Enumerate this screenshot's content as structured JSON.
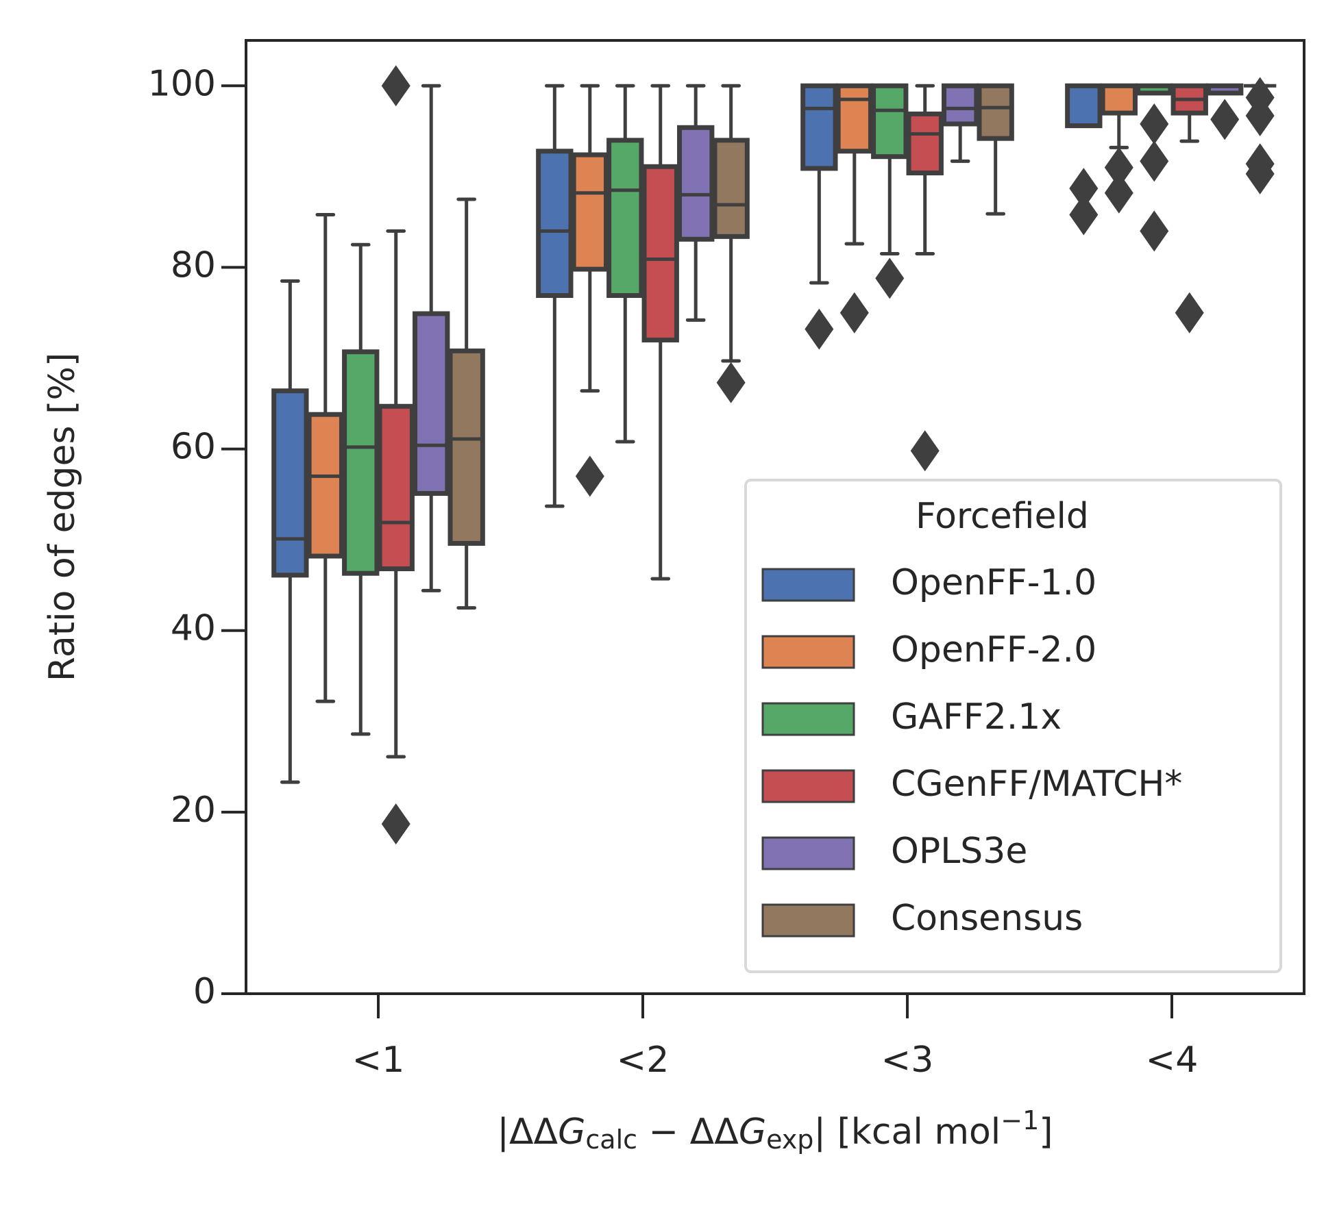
{
  "chart_data": {
    "type": "box",
    "ylabel": "Ratio of edges [%]",
    "xlabel": [
      "|ΔΔ",
      "G",
      "calc",
      " − ΔΔ",
      "G",
      "exp",
      "| [kcal mol",
      "−1",
      "]"
    ],
    "categories": [
      "<1",
      "<2",
      "<3",
      "<4"
    ],
    "ylim": [
      0,
      105
    ],
    "yticks": [
      0,
      20,
      40,
      60,
      80,
      100
    ],
    "legend_title": "Forcefield",
    "legend_position": "lower right",
    "edge_color": "#3f3f3f",
    "series": [
      {
        "name": "OpenFF-1.0",
        "color": "#4c72b0",
        "boxes": [
          {
            "whislo": 23.3,
            "q1": 46.1,
            "med": 50.1,
            "q3": 66.4,
            "whishi": 78.5,
            "fliers": []
          },
          {
            "whislo": 53.7,
            "q1": 76.9,
            "med": 84.0,
            "q3": 92.8,
            "whishi": 100,
            "fliers": []
          },
          {
            "whislo": 78.3,
            "q1": 90.9,
            "med": 97.5,
            "q3": 100,
            "whishi": 100,
            "fliers": [
              73.2
            ]
          },
          {
            "whislo": 95.6,
            "q1": 95.6,
            "med": 100,
            "q3": 100,
            "whishi": 100,
            "fliers": [
              88.7,
              85.8
            ]
          }
        ]
      },
      {
        "name": "OpenFF-2.0",
        "color": "#dd8452",
        "boxes": [
          {
            "whislo": 32.2,
            "q1": 48.2,
            "med": 57.0,
            "q3": 63.8,
            "whishi": 85.8,
            "fliers": []
          },
          {
            "whislo": 66.4,
            "q1": 79.8,
            "med": 88.2,
            "q3": 92.4,
            "whishi": 100,
            "fliers": [
              57.0
            ]
          },
          {
            "whislo": 82.6,
            "q1": 92.8,
            "med": 98.5,
            "q3": 100,
            "whishi": 100,
            "fliers": [
              75.0
            ]
          },
          {
            "whislo": 93.2,
            "q1": 97.0,
            "med": 100,
            "q3": 100,
            "whishi": 100,
            "fliers": [
              91.0,
              88.2
            ]
          }
        ]
      },
      {
        "name": "GAFF2.1x",
        "color": "#55a868",
        "boxes": [
          {
            "whislo": 28.6,
            "q1": 46.3,
            "med": 60.2,
            "q3": 70.7,
            "whishi": 82.5,
            "fliers": []
          },
          {
            "whislo": 60.8,
            "q1": 76.9,
            "med": 88.5,
            "q3": 94.0,
            "whishi": 100,
            "fliers": []
          },
          {
            "whislo": 81.5,
            "q1": 92.2,
            "med": 97.3,
            "q3": 100,
            "whishi": 100,
            "fliers": [
              78.8
            ]
          },
          {
            "whislo": 99.2,
            "q1": 99.2,
            "med": 100,
            "q3": 100,
            "whishi": 100,
            "fliers": [
              95.8,
              91.7,
              84.0
            ]
          }
        ]
      },
      {
        "name": "CGenFF/MATCH*",
        "color": "#c44e52",
        "boxes": [
          {
            "whislo": 26.1,
            "q1": 46.8,
            "med": 51.9,
            "q3": 64.7,
            "whishi": 84.0,
            "fliers": [
              100,
              18.7
            ]
          },
          {
            "whislo": 45.7,
            "q1": 72.0,
            "med": 80.9,
            "q3": 91.1,
            "whishi": 100,
            "fliers": []
          },
          {
            "whislo": 81.5,
            "q1": 90.4,
            "med": 94.7,
            "q3": 96.9,
            "whishi": 100,
            "fliers": [
              59.8
            ]
          },
          {
            "whislo": 93.9,
            "q1": 97.0,
            "med": 98.5,
            "q3": 100,
            "whishi": 100,
            "fliers": [
              75.0
            ]
          }
        ]
      },
      {
        "name": "OPLS3e",
        "color": "#8172b3",
        "boxes": [
          {
            "whislo": 44.4,
            "q1": 55.1,
            "med": 60.4,
            "q3": 74.9,
            "whishi": 100,
            "fliers": []
          },
          {
            "whislo": 74.2,
            "q1": 83.1,
            "med": 88.0,
            "q3": 95.4,
            "whishi": 100,
            "fliers": []
          },
          {
            "whislo": 91.7,
            "q1": 95.8,
            "med": 97.5,
            "q3": 100,
            "whishi": 100,
            "fliers": []
          },
          {
            "whislo": 99.2,
            "q1": 99.2,
            "med": 100,
            "q3": 100,
            "whishi": 100,
            "fliers": [
              96.3
            ]
          }
        ]
      },
      {
        "name": "Consensus",
        "color": "#937860",
        "boxes": [
          {
            "whislo": 42.5,
            "q1": 49.6,
            "med": 61.1,
            "q3": 70.8,
            "whishi": 87.5,
            "fliers": []
          },
          {
            "whislo": 69.7,
            "q1": 83.4,
            "med": 86.9,
            "q3": 94.0,
            "whishi": 100,
            "fliers": [
              67.3
            ]
          },
          {
            "whislo": 85.9,
            "q1": 94.2,
            "med": 97.6,
            "q3": 100,
            "whishi": 100,
            "fliers": []
          },
          {
            "whislo": 100,
            "q1": 100,
            "med": 100,
            "q3": 100,
            "whishi": 100,
            "fliers": [
              98.7,
              96.7,
              91.4,
              90.3
            ]
          }
        ]
      }
    ]
  }
}
